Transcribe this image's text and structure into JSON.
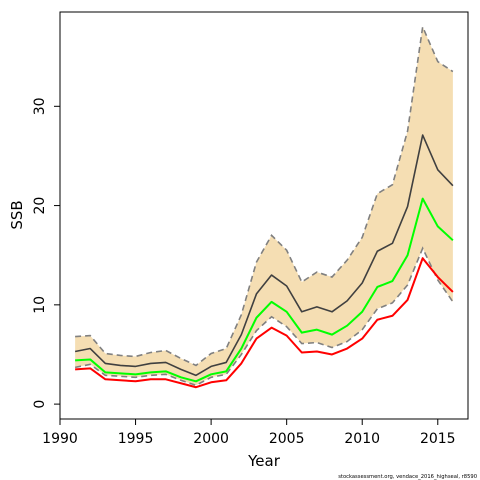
{
  "chart_data": {
    "type": "line",
    "title": "",
    "xlabel": "Year",
    "ylabel": "SSB",
    "xlim": [
      1990,
      2017
    ],
    "ylim": [
      -1.5,
      39.5
    ],
    "xticks": [
      "1990",
      "1995",
      "2000",
      "2005",
      "2010",
      "2015"
    ],
    "yticks": [
      "0",
      "10",
      "20",
      "30"
    ],
    "x": [
      1991,
      1992,
      1993,
      1994,
      1995,
      1996,
      1997,
      1998,
      1999,
      2000,
      2001,
      2002,
      2003,
      2004,
      2005,
      2006,
      2007,
      2008,
      2009,
      2010,
      2011,
      2012,
      2013,
      2014,
      2015,
      2016
    ],
    "band": {
      "upper": [
        6.8,
        6.9,
        5.1,
        4.9,
        4.8,
        5.2,
        5.4,
        4.6,
        3.9,
        5.1,
        5.6,
        9.0,
        14.3,
        17.0,
        15.5,
        12.3,
        13.3,
        12.8,
        14.5,
        16.8,
        21.2,
        22.1,
        27.5,
        38.0,
        34.5,
        33.5
      ],
      "lower": [
        3.7,
        4.0,
        2.9,
        2.8,
        2.7,
        2.9,
        3.0,
        2.4,
        1.9,
        2.7,
        3.0,
        5.0,
        7.4,
        8.8,
        7.8,
        6.1,
        6.2,
        5.7,
        6.3,
        7.5,
        9.6,
        10.2,
        12.0,
        15.7,
        12.5,
        10.3
      ]
    },
    "series": [
      {
        "values": [
          5.3,
          5.6,
          4.1,
          3.9,
          3.8,
          4.1,
          4.2,
          3.5,
          2.9,
          3.8,
          4.2,
          7.0,
          11.1,
          13.0,
          11.9,
          9.3,
          9.8,
          9.3,
          10.4,
          12.2,
          15.4,
          16.2,
          19.9,
          27.1,
          23.6,
          22.0
        ]
      },
      {
        "values": [
          4.4,
          4.5,
          3.2,
          3.1,
          3.0,
          3.2,
          3.3,
          2.7,
          2.3,
          3.0,
          3.3,
          5.6,
          8.7,
          10.3,
          9.3,
          7.2,
          7.5,
          7.0,
          7.9,
          9.3,
          11.8,
          12.4,
          15.0,
          20.7,
          17.9,
          16.5
        ]
      },
      {
        "values": [
          3.5,
          3.6,
          2.5,
          2.4,
          2.3,
          2.5,
          2.5,
          2.1,
          1.7,
          2.2,
          2.4,
          4.1,
          6.6,
          7.7,
          6.9,
          5.2,
          5.3,
          5.0,
          5.6,
          6.6,
          8.5,
          8.9,
          10.5,
          14.7,
          12.8,
          11.3
        ]
      }
    ],
    "colors": {
      "band_fill": "#f5deb3",
      "band_edge": "#808080",
      "series": [
        "#404040",
        "#00ff00",
        "#ff0000"
      ]
    },
    "grid": false,
    "legend": "none",
    "credit": "stockassessment.org, vendace_2016_highseal, r8590"
  }
}
